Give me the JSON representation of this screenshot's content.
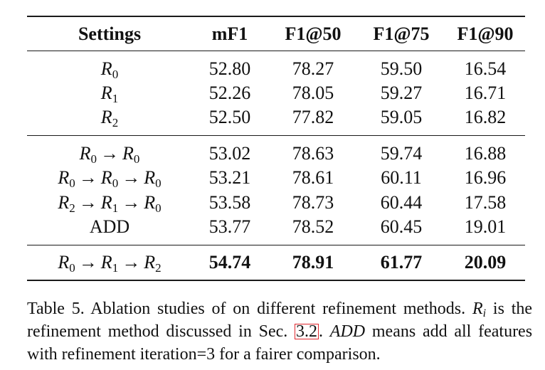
{
  "table": {
    "headers": [
      "Settings",
      "mF1",
      "F1@50",
      "F1@75",
      "F1@90"
    ],
    "group1": [
      {
        "setting": [
          "R0"
        ],
        "values": [
          "52.80",
          "78.27",
          "59.50",
          "16.54"
        ]
      },
      {
        "setting": [
          "R1"
        ],
        "values": [
          "52.26",
          "78.05",
          "59.27",
          "16.71"
        ]
      },
      {
        "setting": [
          "R2"
        ],
        "values": [
          "52.50",
          "77.82",
          "59.05",
          "16.82"
        ]
      }
    ],
    "group2": [
      {
        "setting": [
          "R0",
          "R0"
        ],
        "values": [
          "53.02",
          "78.63",
          "59.74",
          "16.88"
        ]
      },
      {
        "setting": [
          "R0",
          "R0",
          "R0"
        ],
        "values": [
          "53.21",
          "78.61",
          "60.11",
          "16.96"
        ]
      },
      {
        "setting": [
          "R2",
          "R1",
          "R0"
        ],
        "values": [
          "53.58",
          "78.73",
          "60.44",
          "17.58"
        ]
      },
      {
        "setting_text": "ADD",
        "values": [
          "53.77",
          "78.52",
          "60.45",
          "19.01"
        ]
      }
    ],
    "best": {
      "setting": [
        "R0",
        "R1",
        "R2"
      ],
      "values": [
        "54.74",
        "78.91",
        "61.77",
        "20.09"
      ]
    }
  },
  "caption": {
    "label": "Table 5.",
    "text_before_ri": "Ablation studies of on different refinement methods.",
    "ri_symbol": "R",
    "ri_subscript": "i",
    "text_after_ri": "is the refinement method discussed in Sec.",
    "section_ref": "3.2",
    "sentence2_italic": "ADD",
    "text_end": "means add all features with refinement iteration=3 for a fairer comparison."
  }
}
